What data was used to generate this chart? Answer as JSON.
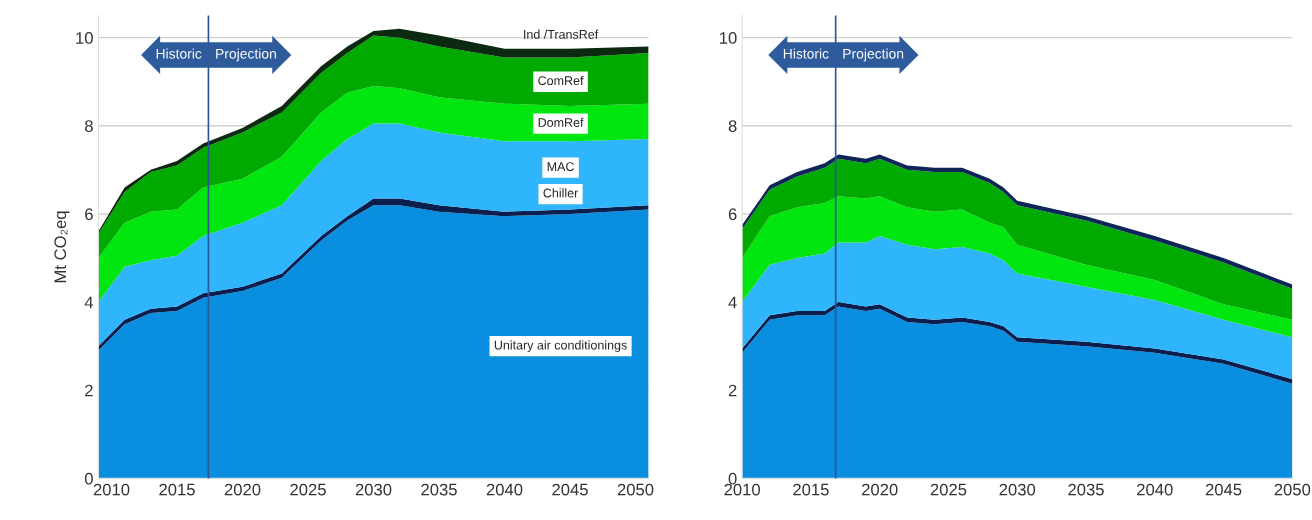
{
  "chart_data": [
    {
      "type": "area",
      "stacked": true,
      "ylabel": "Mt CO₂eq",
      "x": [
        2009,
        2011,
        2013,
        2015,
        2017,
        2020,
        2023,
        2026,
        2028,
        2030,
        2032,
        2035,
        2040,
        2045,
        2051
      ],
      "xlim": [
        2009,
        2051
      ],
      "xticks": [
        2010,
        2015,
        2020,
        2025,
        2030,
        2035,
        2040,
        2045,
        2050
      ],
      "ylim": [
        0,
        10.5
      ],
      "yticks": [
        0,
        2,
        4,
        6,
        8,
        10
      ],
      "grid": "y",
      "series": [
        {
          "name": "Unitary air conditionings",
          "color": "#0a8ee0",
          "values": [
            2.9,
            3.5,
            3.75,
            3.8,
            4.1,
            4.25,
            4.55,
            5.4,
            5.85,
            6.2,
            6.2,
            6.05,
            5.95,
            6.0,
            6.1
          ]
        },
        {
          "name": "Chiller",
          "color": "#0b1f4f",
          "values": [
            0.1,
            0.1,
            0.1,
            0.1,
            0.1,
            0.1,
            0.1,
            0.1,
            0.1,
            0.15,
            0.15,
            0.15,
            0.1,
            0.1,
            0.1
          ]
        },
        {
          "name": "MAC",
          "color": "#2eb5fb",
          "values": [
            1.0,
            1.2,
            1.1,
            1.15,
            1.3,
            1.45,
            1.55,
            1.7,
            1.75,
            1.7,
            1.7,
            1.65,
            1.6,
            1.55,
            1.5
          ]
        },
        {
          "name": "DomRef",
          "color": "#00e60e",
          "values": [
            1.0,
            1.0,
            1.1,
            1.05,
            1.1,
            1.0,
            1.1,
            1.1,
            1.05,
            0.85,
            0.8,
            0.8,
            0.85,
            0.8,
            0.8
          ]
        },
        {
          "name": "ComRef",
          "color": "#00aa00",
          "values": [
            0.55,
            0.7,
            0.9,
            1.0,
            0.9,
            1.05,
            1.0,
            0.9,
            0.9,
            1.15,
            1.15,
            1.15,
            1.05,
            1.1,
            1.15
          ]
        },
        {
          "name": "Ind /TransRef",
          "color": "#0b2a10",
          "values": [
            0.05,
            0.1,
            0.05,
            0.1,
            0.1,
            0.1,
            0.15,
            0.15,
            0.15,
            0.1,
            0.2,
            0.25,
            0.2,
            0.2,
            0.15
          ]
        }
      ],
      "ref_lines": [
        {
          "axis": "x",
          "value": 2017.4,
          "color": "#2f5597"
        }
      ],
      "annotations": [
        "Historic",
        "Projection"
      ]
    },
    {
      "type": "area",
      "stacked": true,
      "x": [
        2010,
        2012,
        2014,
        2016,
        2017,
        2019,
        2020,
        2022,
        2024,
        2026,
        2028,
        2029,
        2030,
        2035,
        2040,
        2045,
        2050
      ],
      "xlim": [
        2010,
        2050
      ],
      "xticks": [
        2010,
        2015,
        2020,
        2025,
        2030,
        2035,
        2040,
        2045,
        2050
      ],
      "ylim": [
        0,
        10.5
      ],
      "yticks": [
        0,
        2,
        4,
        6,
        8,
        10
      ],
      "grid": "y",
      "series": [
        {
          "color": "#0a8ee0",
          "values": [
            2.85,
            3.6,
            3.7,
            3.7,
            3.9,
            3.8,
            3.85,
            3.55,
            3.5,
            3.55,
            3.45,
            3.35,
            3.1,
            3.0,
            2.85,
            2.6,
            2.15
          ]
        },
        {
          "color": "#0b1f4f",
          "values": [
            0.1,
            0.1,
            0.1,
            0.1,
            0.1,
            0.1,
            0.1,
            0.1,
            0.1,
            0.1,
            0.1,
            0.1,
            0.1,
            0.1,
            0.1,
            0.1,
            0.1
          ]
        },
        {
          "color": "#2eb5fb",
          "values": [
            1.05,
            1.15,
            1.2,
            1.3,
            1.35,
            1.45,
            1.55,
            1.65,
            1.6,
            1.6,
            1.55,
            1.5,
            1.45,
            1.25,
            1.1,
            0.9,
            0.95
          ]
        },
        {
          "color": "#00e60e",
          "values": [
            1.0,
            1.1,
            1.15,
            1.15,
            1.05,
            1.0,
            0.9,
            0.85,
            0.85,
            0.85,
            0.7,
            0.75,
            0.65,
            0.5,
            0.45,
            0.35,
            0.4
          ]
        },
        {
          "color": "#00aa00",
          "values": [
            0.65,
            0.6,
            0.7,
            0.8,
            0.85,
            0.8,
            0.85,
            0.85,
            0.9,
            0.85,
            0.9,
            0.8,
            0.9,
            1.0,
            0.9,
            0.95,
            0.7
          ]
        },
        {
          "color": "#0d2657",
          "values": [
            0.1,
            0.1,
            0.1,
            0.1,
            0.1,
            0.1,
            0.1,
            0.1,
            0.1,
            0.1,
            0.1,
            0.1,
            0.1,
            0.1,
            0.1,
            0.1,
            0.1
          ]
        }
      ],
      "ref_lines": [
        {
          "axis": "x",
          "value": 2016.8,
          "color": "#2f5597"
        }
      ],
      "annotations": [
        "Historic",
        "Projection"
      ]
    }
  ]
}
